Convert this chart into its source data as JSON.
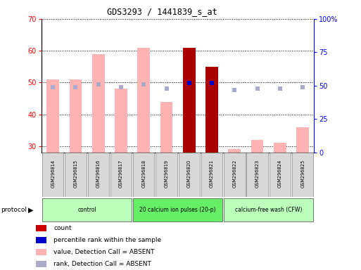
{
  "title": "GDS3293 / 1441839_s_at",
  "samples": [
    "GSM296814",
    "GSM296815",
    "GSM296816",
    "GSM296817",
    "GSM296818",
    "GSM296819",
    "GSM296820",
    "GSM296821",
    "GSM296822",
    "GSM296823",
    "GSM296824",
    "GSM296825"
  ],
  "bar_values": [
    51,
    51,
    59,
    48,
    61,
    44,
    61,
    55,
    29.2,
    32,
    31,
    36
  ],
  "bar_absent": [
    true,
    true,
    true,
    true,
    true,
    true,
    false,
    false,
    true,
    true,
    true,
    true
  ],
  "rank_values": [
    49,
    49,
    51,
    49,
    51,
    48,
    52,
    52,
    47,
    48,
    48,
    49
  ],
  "rank_absent": [
    true,
    true,
    true,
    true,
    true,
    true,
    false,
    false,
    true,
    true,
    true,
    true
  ],
  "bar_absent_color": "#ffb3b3",
  "bar_present_color": "#aa0000",
  "rank_absent_color": "#aaaacc",
  "rank_present_color": "#0000cc",
  "ylim_left": [
    28,
    70
  ],
  "ylim_right": [
    0,
    100
  ],
  "yticks_left": [
    30,
    40,
    50,
    60,
    70
  ],
  "ytick_labels_right": [
    "0",
    "25",
    "50",
    "75",
    "100%"
  ],
  "group_labels": [
    "control",
    "20 calcium ion pulses (20-p)",
    "calcium-free wash (CFW)"
  ],
  "group_ranges": [
    [
      0,
      4
    ],
    [
      4,
      8
    ],
    [
      8,
      12
    ]
  ],
  "group_colors": [
    "#bbffbb",
    "#66ee66",
    "#bbffbb"
  ],
  "legend_colors": [
    "#cc0000",
    "#0000cc",
    "#ffb3b3",
    "#aaaacc"
  ],
  "legend_labels": [
    "count",
    "percentile rank within the sample",
    "value, Detection Call = ABSENT",
    "rank, Detection Call = ABSENT"
  ],
  "bar_bottom": 28
}
